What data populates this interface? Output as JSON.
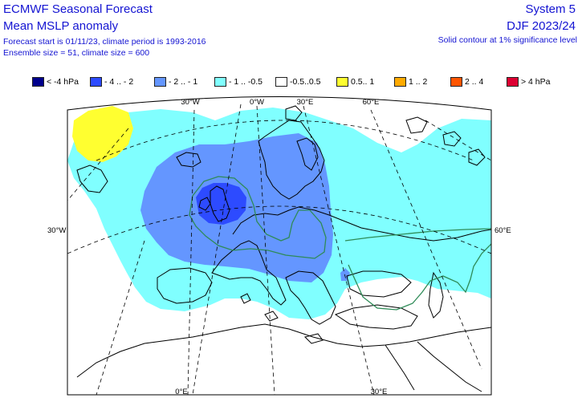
{
  "header": {
    "title": "ECMWF Seasonal Forecast",
    "subtitle": "Mean MSLP anomaly",
    "forecast_info": "Forecast start is 01/11/23, climate period is 1993-2016",
    "ensemble_info": "Ensemble size = 51, climate size = 600",
    "system": "System 5",
    "season": "DJF 2023/24",
    "note": "Solid contour at 1% significance level"
  },
  "legend": [
    {
      "label": "< -4 hPa",
      "color": "#00008c"
    },
    {
      "label": "- 4 .. - 2",
      "color": "#2d4bff"
    },
    {
      "label": "- 2 .. - 1",
      "color": "#6496ff"
    },
    {
      "label": "- 1 .. -0.5",
      "color": "#80ffff"
    },
    {
      "label": "-0.5..0.5",
      "color": "#ffffff"
    },
    {
      "label": "0.5.. 1",
      "color": "#ffff30"
    },
    {
      "label": "1 .. 2",
      "color": "#ffaa00"
    },
    {
      "label": "2 .. 4",
      "color": "#ff5500"
    },
    {
      "label": "> 4 hPa",
      "color": "#dc0032"
    }
  ],
  "map": {
    "graticule_labels": {
      "top_30w": "30°W",
      "top_0w": "0°W",
      "top_30e": "30°E",
      "top_60e": "60°E",
      "left_30w": "30°W",
      "right_60e": "60°E",
      "bottom_0e": "0°E",
      "bottom_30e": "30°E"
    },
    "anomaly_colors": {
      "light_negative": "#80ffff",
      "moderate_negative": "#6496ff",
      "strong_negative": "#2d4bff",
      "positive": "#ffff30",
      "significance_contour": "#2e8b57"
    }
  }
}
